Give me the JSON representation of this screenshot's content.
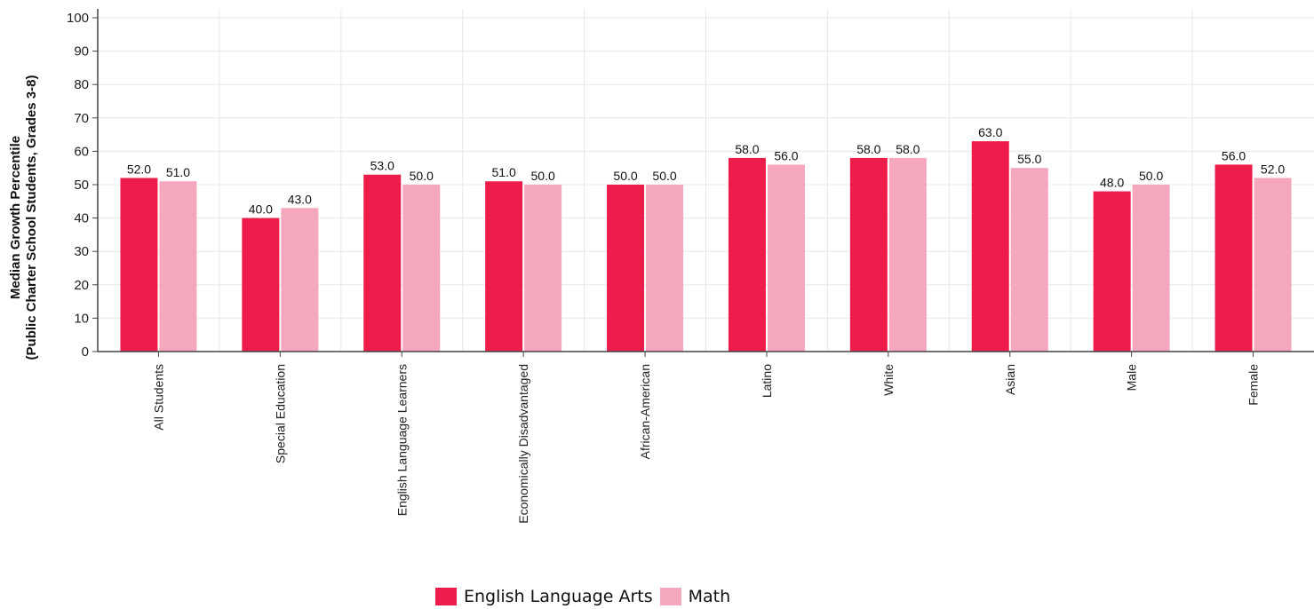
{
  "chart_data": {
    "type": "bar",
    "ylabel_line1": "Median Growth Percentile",
    "ylabel_line2": "(Public Charter School Students, Grades 3-8)",
    "ylim": [
      0,
      100
    ],
    "yticks": [
      0,
      10,
      20,
      30,
      40,
      50,
      60,
      70,
      80,
      90,
      100
    ],
    "categories": [
      "All Students",
      "Special Education",
      "English Language Learners",
      "Economically Disadvantaged",
      "African-American",
      "Latino",
      "White",
      "Asian",
      "Male",
      "Female"
    ],
    "series": [
      {
        "name": "English Language Arts",
        "color": "#ee1c4a",
        "values": [
          52.0,
          40.0,
          53.0,
          51.0,
          50.0,
          58.0,
          58.0,
          63.0,
          48.0,
          56.0
        ]
      },
      {
        "name": "Math",
        "color": "#f4a7bd",
        "values": [
          51.0,
          43.0,
          50.0,
          50.0,
          50.0,
          56.0,
          58.0,
          55.0,
          50.0,
          52.0
        ]
      }
    ],
    "grid": true,
    "legend_position": "bottom-center"
  }
}
